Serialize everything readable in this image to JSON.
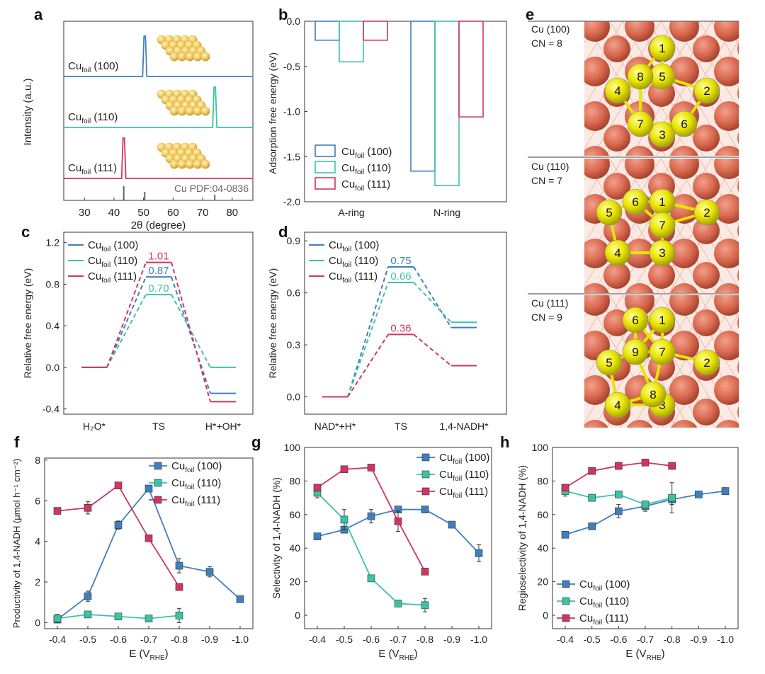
{
  "colors": {
    "c100": "#3f7fbf",
    "c110": "#3cc3a6",
    "c111": "#cf3660",
    "cu": "#d9694f",
    "yel": "#e9e400"
  },
  "legend_main": "Cu",
  "legend_sub": "foil",
  "panel_letters": [
    "a",
    "b",
    "c",
    "d",
    "e",
    "f",
    "g",
    "h"
  ],
  "panel_a": {
    "ylabel": "Intensity (a.u.)",
    "xlabel": "2θ (degree)",
    "xticks": [
      "30",
      "40",
      "50",
      "60",
      "70",
      "80"
    ],
    "trace_labels": [
      " (100)",
      " (110)",
      " (111)"
    ],
    "pdf_label": "Cu PDF:04-0836"
  },
  "chart_data": [
    {
      "panel": "a",
      "type": "line",
      "xlabel": "2θ (degree)",
      "ylabel": "Intensity (a.u.)",
      "xlim": [
        23,
        87
      ],
      "series": [
        {
          "name": "Cufoil (100)",
          "peak_2theta": 50.4
        },
        {
          "name": "Cufoil (110)",
          "peak_2theta": 74.1
        },
        {
          "name": "Cufoil (111)",
          "peak_2theta": 43.3
        }
      ],
      "reference": {
        "name": "Cu PDF:04-0836",
        "lines_2theta": [
          43.3,
          50.4,
          74.1
        ]
      }
    },
    {
      "panel": "b",
      "type": "bar",
      "ylabel": "Adsorption free energy (eV)",
      "categories": [
        "A-ring",
        "N-ring"
      ],
      "ylim": [
        -2.0,
        0.0
      ],
      "yticks": [
        "0.0",
        "-0.5",
        "-1.0",
        "-1.5",
        "-2.0"
      ],
      "series": [
        {
          "name": "Cufoil (100)",
          "values": [
            -0.21,
            -1.66
          ]
        },
        {
          "name": "Cufoil (110)",
          "values": [
            -0.45,
            -1.82
          ]
        },
        {
          "name": "Cufoil (111)",
          "values": [
            -0.21,
            -1.06
          ]
        }
      ]
    },
    {
      "panel": "c",
      "type": "line",
      "ylabel": "Relative free energy (eV)",
      "categories": [
        "H₂O*",
        "TS",
        "H*+OH*"
      ],
      "ylim": [
        -0.45,
        1.3
      ],
      "yticks": [
        "-0.4",
        "0.0",
        "0.4",
        "0.8",
        "1.2"
      ],
      "series": [
        {
          "name": "Cufoil (100)",
          "values": [
            0.0,
            0.87,
            -0.25
          ],
          "ts_label": "0.87"
        },
        {
          "name": "Cufoil (110)",
          "values": [
            0.0,
            0.7,
            0.0
          ],
          "ts_label": "0.70"
        },
        {
          "name": "Cufoil (111)",
          "values": [
            0.0,
            1.01,
            -0.33
          ],
          "ts_label": "1.01"
        }
      ]
    },
    {
      "panel": "d",
      "type": "line",
      "ylabel": "Relative free energy (eV)",
      "categories": [
        "NAD*+H*",
        "TS",
        "1,4-NADH*"
      ],
      "ylim": [
        -0.1,
        0.95
      ],
      "yticks": [
        "0.0",
        "0.3",
        "0.6",
        "0.9"
      ],
      "series": [
        {
          "name": "Cufoil (100)",
          "values": [
            0.0,
            0.75,
            0.4
          ],
          "ts_label": "0.75"
        },
        {
          "name": "Cufoil (110)",
          "values": [
            0.0,
            0.66,
            0.43
          ],
          "ts_label": "0.66"
        },
        {
          "name": "Cufoil (111)",
          "values": [
            0.0,
            0.36,
            0.18
          ],
          "ts_label": "0.36"
        }
      ]
    },
    {
      "panel": "f",
      "type": "line",
      "ylabel": "Productivity of 1,4-NADH (μmol h⁻¹ cm⁻²)",
      "xlabel": "E (VRHE)",
      "xticks": [
        "-0.4",
        "-0.5",
        "-0.6",
        "-0.7",
        "-0.8",
        "-0.9",
        "-1.0"
      ],
      "ylim": [
        -0.3,
        8.1
      ],
      "yticks": [
        "0",
        "2",
        "4",
        "6",
        "8"
      ],
      "series": [
        {
          "name": "Cufoil (100)",
          "x": [
            -0.4,
            -0.5,
            -0.6,
            -0.7,
            -0.8,
            -0.9,
            -1.0
          ],
          "y": [
            0.15,
            1.3,
            4.8,
            6.6,
            2.8,
            2.5,
            1.15
          ],
          "err": [
            0.15,
            0.25,
            0.2,
            0.1,
            0.35,
            0.25,
            0.12
          ]
        },
        {
          "name": "Cufoil (110)",
          "x": [
            -0.4,
            -0.5,
            -0.6,
            -0.7,
            -0.8
          ],
          "y": [
            0.2,
            0.4,
            0.3,
            0.2,
            0.35
          ],
          "err": [
            0.2,
            0.12,
            0.1,
            0.1,
            0.35
          ]
        },
        {
          "name": "Cufoil (111)",
          "x": [
            -0.4,
            -0.5,
            -0.6,
            -0.7,
            -0.8
          ],
          "y": [
            5.5,
            5.65,
            6.75,
            4.15,
            1.75
          ],
          "err": [
            0.1,
            0.3,
            0.15,
            0.1,
            0.15
          ]
        }
      ]
    },
    {
      "panel": "g",
      "type": "line",
      "ylabel": "Selectivity of 1,4-NADH (%)",
      "xlabel": "E (VRHE)",
      "xticks": [
        "-0.4",
        "-0.5",
        "-0.6",
        "-0.7",
        "-0.8",
        "-0.9",
        "-1.0"
      ],
      "ylim": [
        -8,
        100
      ],
      "yticks": [
        "0",
        "20",
        "40",
        "60",
        "80",
        "100"
      ],
      "series": [
        {
          "name": "Cufoil (100)",
          "x": [
            -0.4,
            -0.5,
            -0.6,
            -0.7,
            -0.8,
            -0.9,
            -1.0
          ],
          "y": [
            47,
            51,
            59,
            63,
            63,
            54,
            37
          ],
          "err": [
            1.5,
            2,
            4,
            2,
            1.5,
            1.5,
            5
          ]
        },
        {
          "name": "Cufoil (110)",
          "x": [
            -0.4,
            -0.5,
            -0.6,
            -0.7,
            -0.8
          ],
          "y": [
            73,
            57,
            22,
            7,
            6
          ],
          "err": [
            3,
            6,
            1.5,
            2,
            4
          ]
        },
        {
          "name": "Cufoil (111)",
          "x": [
            -0.4,
            -0.5,
            -0.6,
            -0.7,
            -0.8
          ],
          "y": [
            76,
            87,
            88,
            56,
            26
          ],
          "err": [
            2,
            1.5,
            1,
            6,
            1.5
          ]
        }
      ]
    },
    {
      "panel": "h",
      "type": "line",
      "ylabel": "Regioselectivity of 1,4-NADH (%)",
      "xlabel": "E (VRHE)",
      "xticks": [
        "-0.4",
        "-0.5",
        "-0.6",
        "-0.7",
        "-0.8",
        "-0.9",
        "-1.0"
      ],
      "ylim": [
        -8,
        100
      ],
      "yticks": [
        "0",
        "20",
        "40",
        "60",
        "80",
        "100"
      ],
      "series": [
        {
          "name": "Cufoil (100)",
          "x": [
            -0.4,
            -0.5,
            -0.6,
            -0.7,
            -0.8,
            -0.9,
            -1.0
          ],
          "y": [
            48,
            53,
            62,
            65,
            69,
            72,
            74
          ],
          "err": [
            1.5,
            1.5,
            4,
            3,
            3,
            1.5,
            2
          ]
        },
        {
          "name": "Cufoil (110)",
          "x": [
            -0.4,
            -0.5,
            -0.6,
            -0.7,
            -0.8
          ],
          "y": [
            74,
            70,
            72,
            66,
            70
          ],
          "err": [
            3,
            2,
            2,
            2,
            9
          ]
        },
        {
          "name": "Cufoil (111)",
          "x": [
            -0.4,
            -0.5,
            -0.6,
            -0.7,
            -0.8
          ],
          "y": [
            76,
            86,
            89,
            91,
            89
          ],
          "err": [
            1.5,
            2,
            2,
            1.5,
            1.5
          ]
        }
      ]
    }
  ],
  "panel_e": {
    "blocks": [
      {
        "label": "Cu (100)",
        "cn": "CN = 8",
        "numbers": [
          "1",
          "2",
          "3",
          "4",
          "5",
          "6",
          "7",
          "8"
        ]
      },
      {
        "label": "Cu (110)",
        "cn": "CN = 7",
        "numbers": [
          "1",
          "2",
          "3",
          "4",
          "5",
          "6",
          "7"
        ]
      },
      {
        "label": "Cu (111)",
        "cn": "CN = 9",
        "numbers": [
          "1",
          "2",
          "3",
          "4",
          "5",
          "6",
          "7",
          "8",
          "9"
        ]
      }
    ]
  },
  "legend_suffixes": [
    " (100)",
    " (110)",
    " (111)"
  ]
}
